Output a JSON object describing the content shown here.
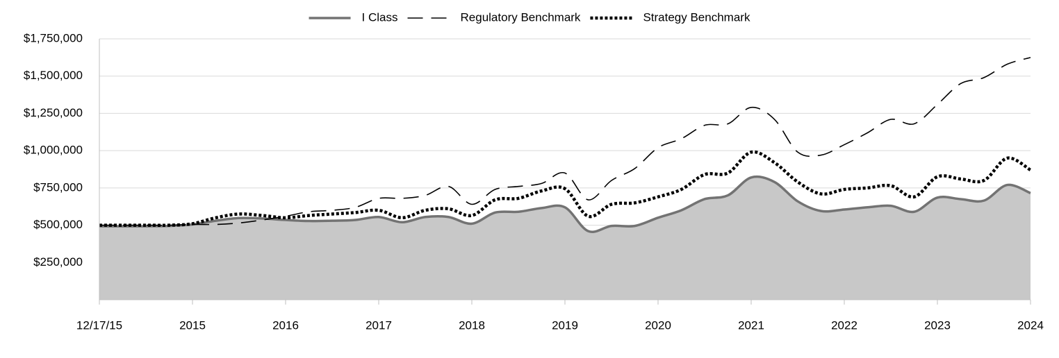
{
  "chart_data": {
    "type": "line",
    "categories": [
      "12/17/15",
      null,
      null,
      null,
      "2015",
      null,
      null,
      null,
      "2016",
      null,
      null,
      null,
      "2017",
      null,
      null,
      null,
      "2018",
      null,
      null,
      null,
      "2019",
      null,
      null,
      null,
      "2020",
      null,
      null,
      null,
      "2021",
      null,
      null,
      null,
      "2022",
      null,
      null,
      null,
      "2023",
      null,
      null,
      null,
      "2024"
    ],
    "series": [
      {
        "name": "I Class",
        "color": "#737373",
        "style": "area",
        "values": [
          493000,
          493000,
          493000,
          495000,
          505000,
          530000,
          548000,
          545000,
          535000,
          528000,
          530000,
          535000,
          555000,
          520000,
          555000,
          555000,
          510000,
          585000,
          590000,
          615000,
          620000,
          460000,
          495000,
          495000,
          550000,
          600000,
          675000,
          700000,
          820000,
          790000,
          660000,
          595000,
          605000,
          620000,
          630000,
          590000,
          685000,
          675000,
          665000,
          770000,
          715000
        ]
      },
      {
        "name": "Regulatory Benchmark",
        "color": "#000000",
        "style": "dashed",
        "values": [
          500000,
          500000,
          500000,
          500000,
          505000,
          505000,
          515000,
          535000,
          560000,
          590000,
          600000,
          620000,
          680000,
          680000,
          700000,
          760000,
          640000,
          740000,
          760000,
          780000,
          850000,
          670000,
          800000,
          880000,
          1020000,
          1080000,
          1170000,
          1180000,
          1290000,
          1210000,
          990000,
          970000,
          1040000,
          1120000,
          1210000,
          1180000,
          1310000,
          1450000,
          1490000,
          1580000,
          1625000
        ]
      },
      {
        "name": "Strategy Benchmark",
        "color": "#000000",
        "style": "dotted",
        "values": [
          500000,
          500000,
          500000,
          500000,
          510000,
          550000,
          575000,
          565000,
          550000,
          565000,
          575000,
          585000,
          600000,
          550000,
          600000,
          610000,
          565000,
          670000,
          680000,
          730000,
          745000,
          560000,
          640000,
          650000,
          690000,
          740000,
          840000,
          850000,
          990000,
          920000,
          790000,
          710000,
          740000,
          750000,
          765000,
          690000,
          825000,
          810000,
          800000,
          950000,
          870000
        ]
      }
    ],
    "ylim": [
      0,
      1750000
    ],
    "yticks": [
      {
        "value": 250000,
        "label": "$250,000"
      },
      {
        "value": 500000,
        "label": "$500,000"
      },
      {
        "value": 750000,
        "label": "$750,000"
      },
      {
        "value": 1000000,
        "label": "$1,000,000"
      },
      {
        "value": 1250000,
        "label": "$1,250,000"
      },
      {
        "value": 1500000,
        "label": "$1,500,000"
      },
      {
        "value": 1750000,
        "label": "$1,750,000"
      }
    ],
    "grid": true,
    "legend": "top"
  }
}
